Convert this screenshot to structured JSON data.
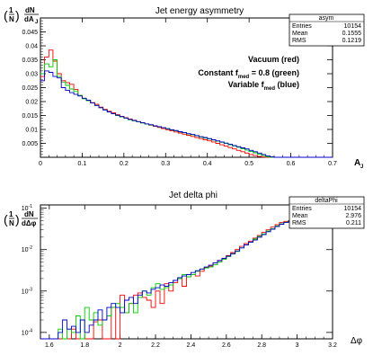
{
  "chart_data": [
    {
      "type": "step-histogram",
      "title": "Jet energy asymmetry",
      "xlabel": "A",
      "xlabel_sub": "J",
      "ylabel": "(1/N) dN/dA_J",
      "xlim": [
        0,
        0.7
      ],
      "ylim": [
        0,
        0.05
      ],
      "x_ticks": [
        0,
        0.1,
        0.2,
        0.3,
        0.4,
        0.5,
        0.6,
        0.7
      ],
      "y_ticks": [
        0.005,
        0.01,
        0.015,
        0.02,
        0.025,
        0.03,
        0.035,
        0.04,
        0.045
      ],
      "stats": {
        "title": "asym",
        "rows": [
          {
            "label": "Entries",
            "value": "10154"
          },
          {
            "label": "Mean",
            "value": "0.1555"
          },
          {
            "label": "RMS",
            "value": "0.1219"
          }
        ]
      },
      "legend_lines": [
        {
          "text": "Vacuum (red)"
        },
        {
          "pre": "Constant f",
          "sub": "med",
          "post": " = 0.8 (green)"
        },
        {
          "pre": "Variable f",
          "sub": "med",
          "post": " (blue)"
        }
      ],
      "bin_width": 0.01,
      "series": [
        {
          "name": "Vacuum",
          "color": "#ff0000",
          "values": [
            0.029,
            0.036,
            0.0385,
            0.0345,
            0.03,
            0.0275,
            0.0268,
            0.0262,
            0.0244,
            0.0222,
            0.0212,
            0.0205,
            0.0196,
            0.019,
            0.018,
            0.0172,
            0.0165,
            0.016,
            0.0153,
            0.0147,
            0.0142,
            0.0137,
            0.0133,
            0.0128,
            0.0124,
            0.0119,
            0.0115,
            0.0111,
            0.0107,
            0.0103,
            0.0099,
            0.0095,
            0.0091,
            0.0087,
            0.0083,
            0.0079,
            0.0075,
            0.0071,
            0.0067,
            0.0063,
            0.0059,
            0.0055,
            0.005,
            0.0045,
            0.004,
            0.0035,
            0.003,
            0.0025,
            0.002,
            0.0015,
            0.001,
            0.0006,
            0.0003,
            0.0001,
            0,
            0,
            0,
            0,
            0,
            0,
            0,
            0,
            0,
            0,
            0,
            0,
            0,
            0,
            0,
            0
          ]
        },
        {
          "name": "Constant fmed = 0.8",
          "color": "#00cc00",
          "values": [
            0.03,
            0.0335,
            0.0325,
            0.035,
            0.029,
            0.027,
            0.0258,
            0.0245,
            0.0236,
            0.0222,
            0.021,
            0.0203,
            0.0195,
            0.0186,
            0.0178,
            0.017,
            0.0163,
            0.0156,
            0.015,
            0.0145,
            0.014,
            0.0135,
            0.0131,
            0.0127,
            0.0123,
            0.0119,
            0.0116,
            0.0113,
            0.0109,
            0.0106,
            0.0102,
            0.0098,
            0.0095,
            0.0091,
            0.0088,
            0.0084,
            0.0081,
            0.0077,
            0.0073,
            0.0069,
            0.0066,
            0.0062,
            0.0058,
            0.0054,
            0.005,
            0.0045,
            0.0041,
            0.0036,
            0.0031,
            0.0026,
            0.0021,
            0.0016,
            0.0011,
            0.0006,
            0.0002,
            0,
            0,
            0,
            0,
            0,
            0,
            0,
            0,
            0,
            0,
            0,
            0,
            0,
            0,
            0
          ]
        },
        {
          "name": "Variable fmed",
          "color": "#0000cc",
          "values": [
            0.0275,
            0.031,
            0.0305,
            0.029,
            0.0285,
            0.025,
            0.024,
            0.0232,
            0.0226,
            0.022,
            0.0212,
            0.0205,
            0.0195,
            0.0186,
            0.0178,
            0.017,
            0.0163,
            0.0156,
            0.0151,
            0.0146,
            0.0141,
            0.0136,
            0.0132,
            0.0128,
            0.0124,
            0.012,
            0.0117,
            0.0113,
            0.011,
            0.0106,
            0.0103,
            0.0099,
            0.0096,
            0.0092,
            0.0089,
            0.0085,
            0.0082,
            0.0078,
            0.0074,
            0.0071,
            0.0067,
            0.0063,
            0.0059,
            0.0055,
            0.0051,
            0.0047,
            0.0042,
            0.0038,
            0.0034,
            0.003,
            0.0025,
            0.002,
            0.0015,
            0.001,
            0.0005,
            0.0002,
            0,
            0,
            0,
            0,
            0,
            0,
            0,
            0,
            0,
            0,
            0,
            0,
            0,
            0
          ]
        }
      ]
    },
    {
      "type": "step-histogram",
      "title": "Jet delta phi",
      "xlabel": "Δφ",
      "ylabel": "(1/N) dN/dΔφ",
      "log_y": true,
      "xlim": [
        1.55,
        3.2
      ],
      "ylim": [
        7e-05,
        0.12
      ],
      "x_ticks": [
        1.6,
        1.8,
        2,
        2.2,
        2.4,
        2.6,
        2.8,
        3,
        3.2
      ],
      "y_ticks": [
        {
          "value": 0.1,
          "base": "10",
          "exp": "-1"
        },
        {
          "value": 0.01,
          "base": "10",
          "exp": "-2"
        },
        {
          "value": 0.001,
          "base": "10",
          "exp": "-3"
        },
        {
          "value": 0.0001,
          "base": "10",
          "exp": "-4"
        }
      ],
      "stats": {
        "title": "deltaPhi",
        "rows": [
          {
            "label": "Entries",
            "value": "10154"
          },
          {
            "label": "Mean",
            "value": "2.976"
          },
          {
            "label": "RMS",
            "value": "0.211"
          }
        ]
      },
      "bin_width": 0.025,
      "series": [
        {
          "name": "Vacuum",
          "color": "#ff0000",
          "values": [
            0,
            0,
            0,
            0,
            0,
            0,
            0,
            0.00012,
            0,
            0,
            0,
            0,
            0.00018,
            0.0002,
            0,
            0,
            0.0004,
            0,
            0.0008,
            0.0003,
            0.0005,
            0.0008,
            0.0009,
            0.0007,
            0.0006,
            0.0004,
            0.001,
            0.0005,
            0.0015,
            0.001,
            0.0016,
            0.002,
            0.0013,
            0.0022,
            0.0025,
            0.0023,
            0.003,
            0.0037,
            0.004,
            0.0048,
            0.0055,
            0.0062,
            0.0072,
            0.0085,
            0.01,
            0.012,
            0.014,
            0.016,
            0.019,
            0.022,
            0.026,
            0.03,
            0.035,
            0.04,
            0.045,
            0.048,
            0.05,
            0.048,
            0.046,
            0.044,
            0.04,
            0.04,
            0.04,
            0.04,
            0.04,
            0.04,
            0.04
          ]
        },
        {
          "name": "Constant fmed = 0.8",
          "color": "#00cc00",
          "values": [
            0,
            0,
            0,
            0,
            0.00012,
            0,
            0.00012,
            0.0001,
            0.00025,
            0,
            0.0004,
            0.0002,
            0.0003,
            0.00015,
            0.0002,
            0.00025,
            0.0004,
            0.0005,
            0.0004,
            0.0003,
            0.0005,
            0.0003,
            0.0007,
            0.001,
            0.0008,
            0.0012,
            0.0015,
            0.0011,
            0.0012,
            0.0014,
            0.0018,
            0.002,
            0.0025,
            0.0022,
            0.0025,
            0.003,
            0.0034,
            0.0036,
            0.0038,
            0.0043,
            0.005,
            0.0058,
            0.0068,
            0.0078,
            0.009,
            0.011,
            0.013,
            0.015,
            0.018,
            0.021,
            0.024,
            0.028,
            0.032,
            0.037,
            0.042,
            0.046,
            0.049,
            0.047,
            0.045,
            0.043,
            0.04,
            0.04,
            0.04,
            0.04,
            0.04,
            0.04,
            0.04
          ]
        },
        {
          "name": "Variable fmed",
          "color": "#0000cc",
          "values": [
            0,
            0,
            0,
            6e-05,
            0.0001,
            0.0002,
            0.00012,
            0.00014,
            0.0001,
            0.0002,
            0.0001,
            0.00015,
            0.0002,
            0.00035,
            0.0002,
            0.0004,
            0.0005,
            0.0004,
            0.0003,
            0.0006,
            0.0007,
            0.0005,
            0.0008,
            0.001,
            0.0009,
            0.0011,
            0.0012,
            0.0014,
            0.0013,
            0.0016,
            0.0018,
            0.0021,
            0.0023,
            0.0025,
            0.0028,
            0.0031,
            0.0034,
            0.0038,
            0.0042,
            0.0048,
            0.0054,
            0.0061,
            0.007,
            0.008,
            0.0093,
            0.011,
            0.013,
            0.015,
            0.017,
            0.02,
            0.023,
            0.027,
            0.031,
            0.036,
            0.041,
            0.045,
            0.048,
            0.046,
            0.045,
            0.043,
            0.041,
            0.04,
            0.04,
            0.04,
            0.04,
            0.04,
            0.04
          ]
        }
      ]
    }
  ]
}
